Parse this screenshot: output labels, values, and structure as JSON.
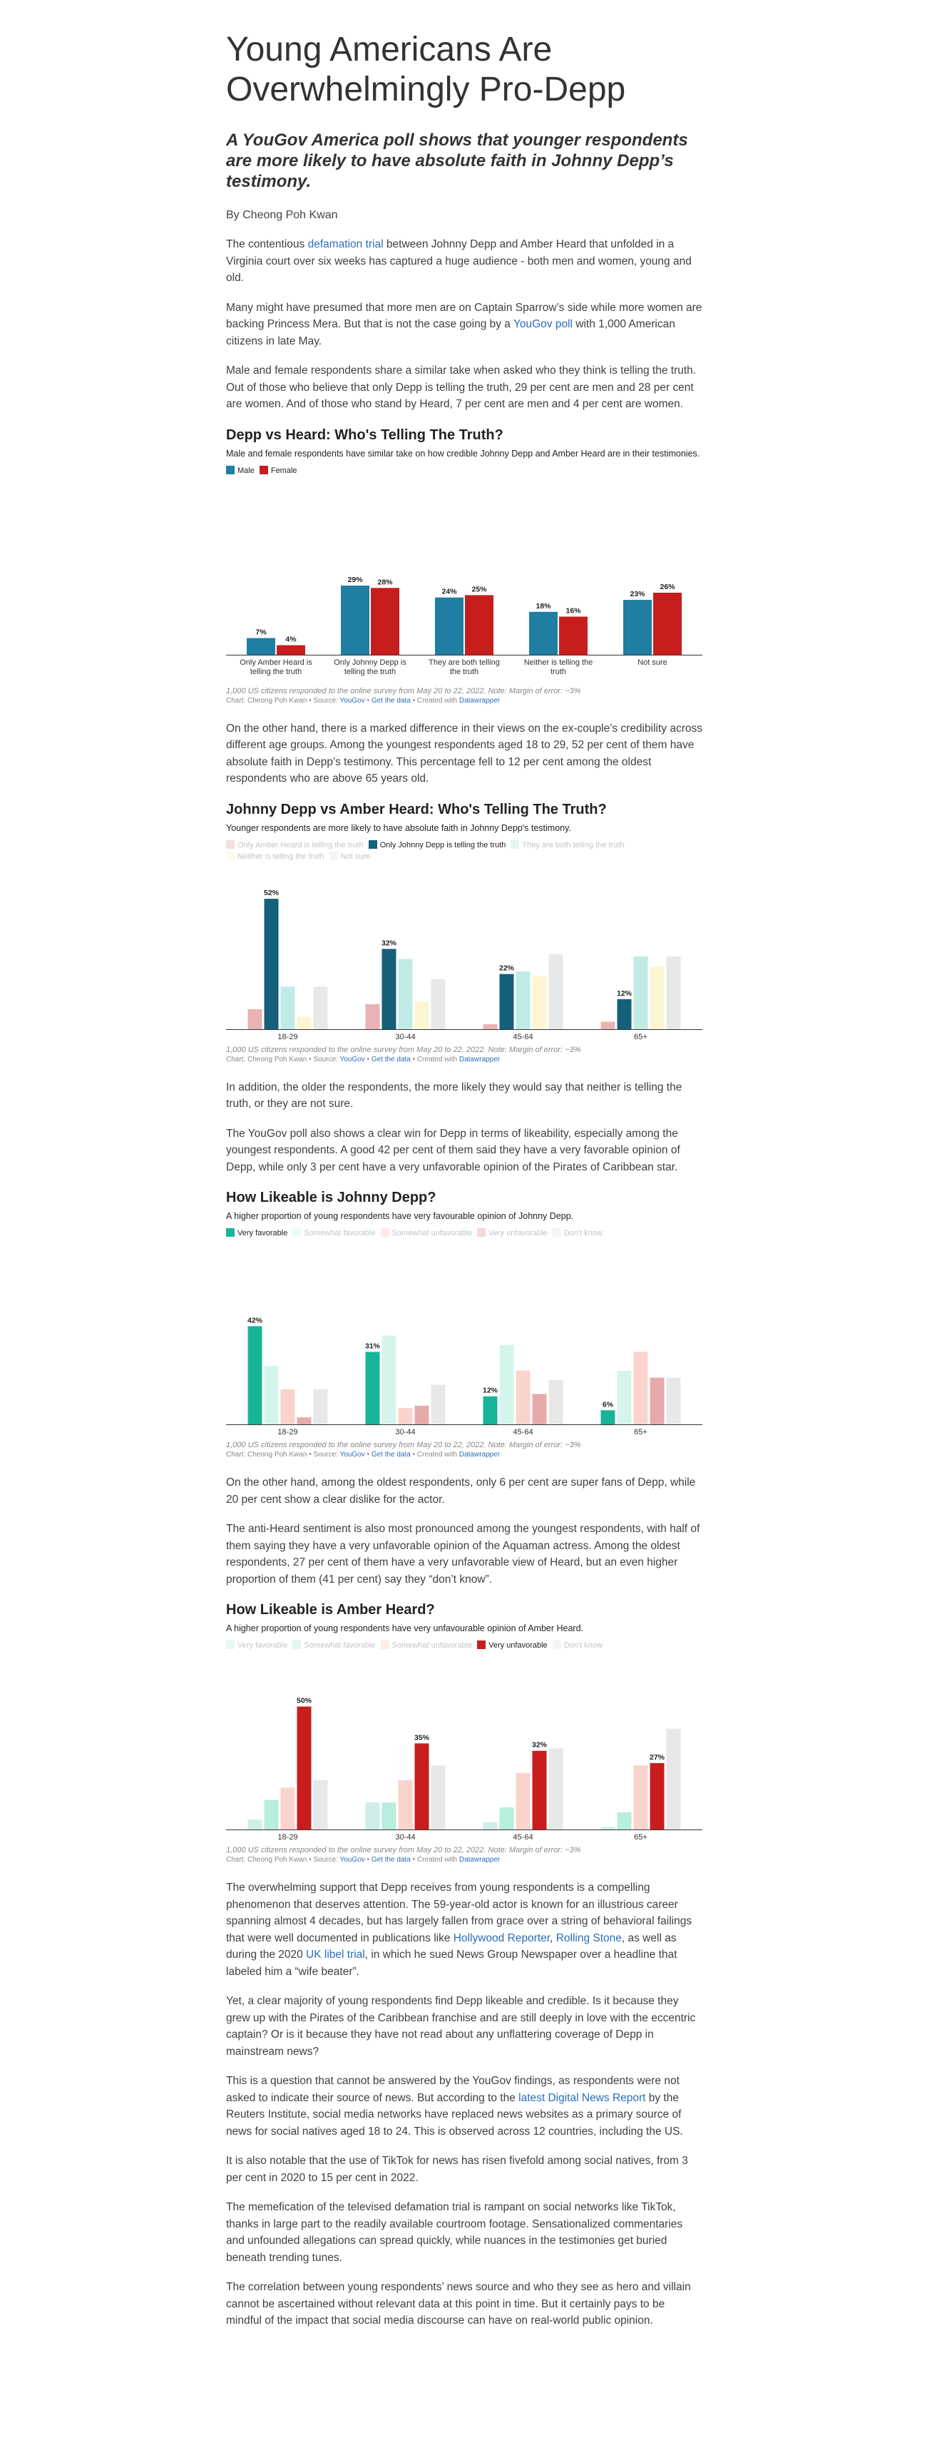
{
  "article": {
    "title": "Young Americans Are Overwhelmingly Pro-Depp",
    "subtitle": "A YouGov America poll shows that younger respondents are more likely to have absolute faith in Johnny Depp’s testimony.",
    "byline": "By Cheong Poh Kwan",
    "p1": {
      "a": "The contentious ",
      "link": "defamation trial",
      "b": " between Johnny Depp and Amber Heard that unfolded in a Virginia court over six weeks has captured a huge audience - both men and women, young and old."
    },
    "p2": {
      "a": "Many might have presumed that more men are on Captain Sparrow’s side while more women are backing Princess Mera. But that is not the case going by a ",
      "link": "YouGov poll",
      "b": " with 1,000 American citizens in late May."
    },
    "p3": "Male and female respondents share a similar take when asked who they think is telling the truth. Out of those who believe that only Depp is telling the truth, 29 per cent are men and 28 per cent are women. And of those who stand by Heard, 7 per cent are men and 4 per cent are women.",
    "p4": "On the other hand, there is a marked difference in their views on the ex-couple’s credibility across different age groups. Among the youngest respondents aged 18 to 29, 52 per cent of them have absolute faith in Depp’s testimony. This percentage fell to 12 per cent among the oldest respondents who are above 65 years old.",
    "p5": "In addition, the older the respondents, the more likely they would say that neither is telling the truth, or they are not sure.",
    "p6": "The YouGov poll also shows a clear win for Depp in terms of likeability, especially among the youngest respondents. A good 42 per cent of them said they have a very favorable opinion of Depp, while only 3 per cent have a very unfavorable opinion of the Pirates of Caribbean star.",
    "p7": "On the other hand, among the oldest respondents, only 6 per cent are super fans of Depp, while 20 per cent show a clear dislike for the actor.",
    "p8": "The anti-Heard sentiment is also most pronounced among the youngest respondents, with half of them saying they have a very unfavorable opinion of the Aquaman actress. Among the oldest respondents, 27 per cent of them have a very unfavorable view of Heard, but an even higher proportion of them (41 per cent) say they “don’t know”.",
    "p9": {
      "a": "The overwhelming support that Depp receives from young respondents is a compelling phenomenon that deserves attention. The 59-year-old actor is known for an illustrious career spanning almost 4 decades, but has largely fallen from grace over a string of behavioral failings that were well documented in publications like ",
      "link1": "Hollywood Reporter",
      "sep": ", ",
      "link2": "Rolling Stone",
      "b": ", as well as during the 2020 ",
      "link3": "UK libel trial",
      "c": ", in which he sued News Group Newspaper over a headline that labeled him a “wife beater”."
    },
    "p10": "Yet, a clear majority of young respondents find Depp likeable and credible. Is it because they grew up with the Pirates of the Caribbean franchise and are still deeply in love with the eccentric captain? Or is it because they have not read about any unflattering coverage of Depp in mainstream news?",
    "p11": {
      "a": "This is a question that cannot be answered by the YouGov findings, as respondents were not asked to indicate their source of news. But according to the ",
      "link": "latest Digital News Report",
      "b": " by the Reuters Institute, social media networks have replaced news websites as a primary source of news for social natives aged 18 to 24. This is observed across 12 countries, including the US."
    },
    "p12": "It is also notable that the use of TikTok for news has risen fivefold among social natives, from 3 per cent in 2020 to 15 per cent in 2022.",
    "p13": "The memefication of the televised defamation trial is rampant on social networks like TikTok, thanks in large part to the readily available courtroom footage. Sensationalized commentaries and unfounded allegations can spread quickly, while nuances in the testimonies get buried beneath trending tunes.",
    "p14": "The correlation between young respondents’ news source and who they see as hero and villain cannot be ascertained without relevant data at this point in time. But it certainly pays to be mindful of the impact that social media discourse can have on real-world public opinion."
  },
  "common": {
    "note": "1,000 US citizens responded to the online survey from May 20 to 22, 2022. Note: Margin of error: ~3%",
    "credit_a": "Chart: Cheong Poh Kwan • Source: ",
    "credit_source": "YouGov",
    "credit_sep": " • ",
    "credit_data": "Get the data",
    "credit_b": " • Created with ",
    "credit_tool": "Datawrapper"
  },
  "chart_data": [
    {
      "type": "bar",
      "title": "Depp vs Heard: Who's Telling The Truth?",
      "description": "Male and female respondents have similar take on how credible Johnny Depp and Amber Heard are in their testimonies.",
      "categories": [
        "Only Amber Heard is telling the truth",
        "Only Johnny Depp is telling the truth",
        "They are both telling the truth",
        "Neither is telling the truth",
        "Not sure"
      ],
      "series": [
        {
          "name": "Male",
          "color": "#1f7ea1",
          "values": [
            7,
            29,
            24,
            18,
            23
          ],
          "labeled": true,
          "dim": false
        },
        {
          "name": "Female",
          "color": "#c71e1d",
          "values": [
            4,
            28,
            25,
            16,
            26
          ],
          "labeled": true,
          "dim": false
        }
      ],
      "ylim": [
        0,
        55
      ],
      "grid": false,
      "legend": "top-left"
    },
    {
      "type": "bar",
      "title": "Johnny Depp vs Amber Heard: Who's Telling The Truth?",
      "description": "Younger respondents are more likely to have absolute faith in Johnny Depp's testimony.",
      "categories": [
        "18-29",
        "30-44",
        "45-64",
        "65+"
      ],
      "series": [
        {
          "name": "Only Amber Heard is telling the truth",
          "color": "#e9b3b3",
          "values": [
            8,
            10,
            2,
            3
          ],
          "labeled": false,
          "dim": true
        },
        {
          "name": "Only Johnny Depp is telling the truth",
          "color": "#15607a",
          "values": [
            52,
            32,
            22,
            12
          ],
          "labeled": true,
          "dim": false
        },
        {
          "name": "They are both telling the truth",
          "color": "#c1ebe5",
          "values": [
            17,
            28,
            23,
            29
          ],
          "labeled": false,
          "dim": true
        },
        {
          "name": "Neither is telling the truth",
          "color": "#fcf6d2",
          "values": [
            5,
            11,
            21,
            25
          ],
          "labeled": false,
          "dim": true
        },
        {
          "name": "Not sure",
          "color": "#e8e8e8",
          "values": [
            17,
            20,
            30,
            29
          ],
          "labeled": false,
          "dim": true
        }
      ],
      "ylim": [
        0,
        58
      ],
      "grid": false,
      "legend": "top-left"
    },
    {
      "type": "bar",
      "title": "How Likeable is Johnny Depp?",
      "description": "A higher proportion of young respondents have very favourable opinion of Johnny Depp.",
      "categories": [
        "18-29",
        "30-44",
        "45-64",
        "65+"
      ],
      "series": [
        {
          "name": "Very favorable",
          "color": "#18b497",
          "values": [
            42,
            31,
            12,
            6
          ],
          "labeled": true,
          "dim": false
        },
        {
          "name": "Somewhat favorable",
          "color": "#d5f5ec",
          "values": [
            25,
            38,
            34,
            23
          ],
          "labeled": false,
          "dim": true
        },
        {
          "name": "Somewhat unfavorable",
          "color": "#fbd3cd",
          "values": [
            15,
            7,
            23,
            31
          ],
          "labeled": false,
          "dim": true
        },
        {
          "name": "Very unfavorable",
          "color": "#e7aaaa",
          "values": [
            3,
            8,
            13,
            20
          ],
          "labeled": false,
          "dim": true
        },
        {
          "name": "Don't know",
          "color": "#e8e8e8",
          "values": [
            15,
            17,
            19,
            20
          ],
          "labeled": false,
          "dim": true
        }
      ],
      "ylim": [
        0,
        58
      ],
      "grid": false,
      "legend": "top-left"
    },
    {
      "type": "bar",
      "title": "How Likeable is Amber Heard?",
      "description": "A higher proportion of young respondents have very unfavourable opinion of Amber Heard.",
      "categories": [
        "18-29",
        "30-44",
        "45-64",
        "65+"
      ],
      "series": [
        {
          "name": "Very favorable",
          "color": "#cdeee8",
          "values": [
            4,
            11,
            3,
            1
          ],
          "labeled": false,
          "dim": true
        },
        {
          "name": "Somewhat favorable",
          "color": "#b7eedc",
          "values": [
            12,
            11,
            9,
            7
          ],
          "labeled": false,
          "dim": true
        },
        {
          "name": "Somewhat unfavorable",
          "color": "#fbd3cd",
          "values": [
            17,
            20,
            23,
            26
          ],
          "labeled": false,
          "dim": true
        },
        {
          "name": "Very unfavorable",
          "color": "#c71e1d",
          "values": [
            50,
            35,
            32,
            27
          ],
          "labeled": true,
          "dim": false
        },
        {
          "name": "Don't know",
          "color": "#e8e8e8",
          "values": [
            20,
            26,
            33,
            41
          ],
          "labeled": false,
          "dim": true
        }
      ],
      "ylim": [
        0,
        58
      ],
      "grid": false,
      "legend": "top-left"
    }
  ]
}
